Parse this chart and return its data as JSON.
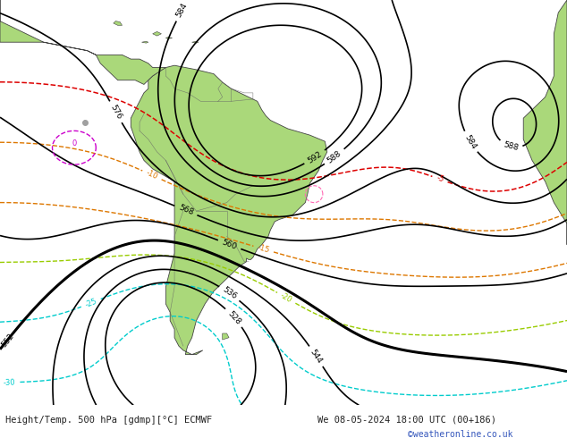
{
  "title_left": "Height/Temp. 500 hPa [gdmp][°C] ECMWF",
  "title_right": "We 08-05-2024 18:00 UTC (00+186)",
  "credit": "©weatheronline.co.uk",
  "bg_ocean": "#c8c8c8",
  "land_color": "#aad87a",
  "land_edge": "#444444",
  "border_color": "#666666",
  "figsize": [
    6.34,
    4.9
  ],
  "dpi": 100,
  "bottom_color": "#f0f0f0",
  "text_color": "#222222",
  "credit_color": "#3355bb",
  "geo_color": "#000000",
  "temp_colors": {
    "-5": "#dd0000",
    "-10": "#dd7700",
    "-15": "#dd7700",
    "-20": "#88bb00",
    "-25": "#00bbbb",
    "-30": "#00bbbb"
  },
  "magenta_color": "#cc00cc"
}
